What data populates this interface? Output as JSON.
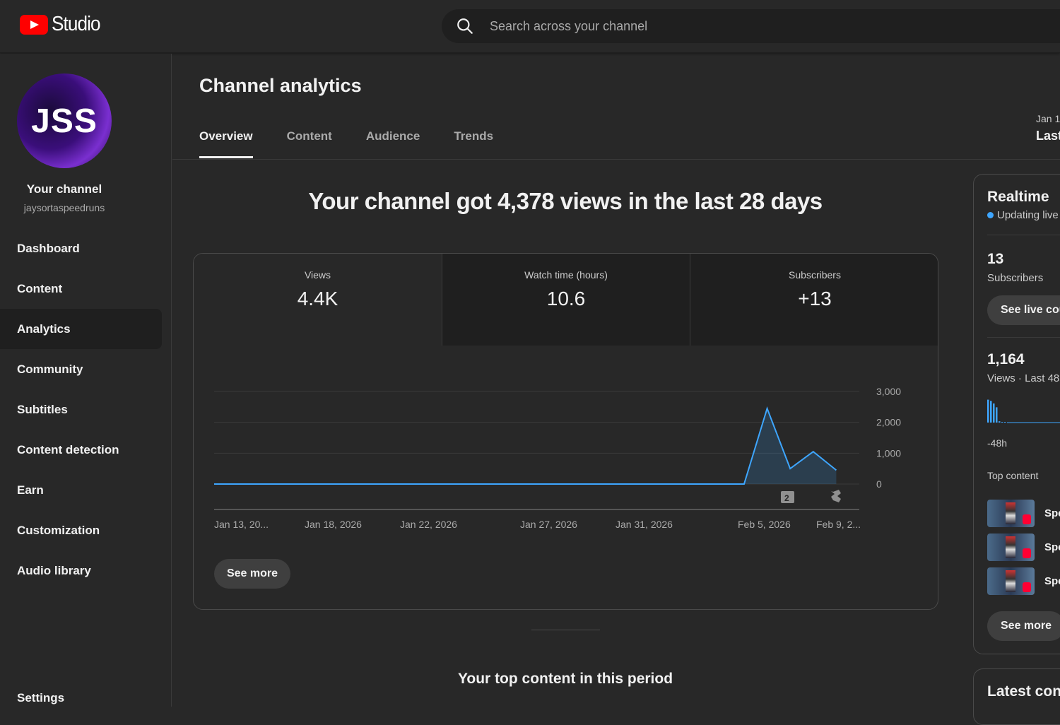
{
  "header": {
    "logo_text": "Studio",
    "search_placeholder": "Search across your channel"
  },
  "sidebar": {
    "avatar_text": "JSS",
    "channel_title": "Your channel",
    "channel_handle": "jaysortaspeedruns",
    "items": [
      {
        "label": "Dashboard"
      },
      {
        "label": "Content"
      },
      {
        "label": "Analytics",
        "active": true
      },
      {
        "label": "Community"
      },
      {
        "label": "Subtitles"
      },
      {
        "label": "Content detection"
      },
      {
        "label": "Earn"
      },
      {
        "label": "Customization"
      },
      {
        "label": "Audio library"
      }
    ],
    "settings_label": "Settings"
  },
  "main": {
    "title": "Channel analytics",
    "tabs": [
      {
        "label": "Overview",
        "active": true
      },
      {
        "label": "Content"
      },
      {
        "label": "Audience"
      },
      {
        "label": "Trends"
      }
    ],
    "date_range_small": "Jan 1",
    "date_range_label": "Last",
    "headline": "Your channel got 4,378 views in the last 28 days",
    "metrics": [
      {
        "label": "Views",
        "value": "4.4K"
      },
      {
        "label": "Watch time (hours)",
        "value": "10.6"
      },
      {
        "label": "Subscribers",
        "value": "+13"
      }
    ],
    "see_more_label": "See more",
    "top_content_heading": "Your top content in this period",
    "chart_marker_count": "2"
  },
  "chart_data": {
    "type": "area",
    "x_tick_labels": [
      "Jan 13, 20...",
      "Jan 18, 2026",
      "Jan 22, 2026",
      "Jan 27, 2026",
      "Jan 31, 2026",
      "Feb 5, 2026",
      "Feb 9, 2..."
    ],
    "y_tick_labels": [
      "3,000",
      "2,000",
      "1,000",
      "0"
    ],
    "ylim": [
      0,
      3000
    ],
    "x_range_days": [
      0,
      28
    ],
    "series": [
      {
        "color": "#3ea6ff",
        "points": [
          [
            0,
            0
          ],
          [
            23,
            0
          ],
          [
            24,
            2450
          ],
          [
            25,
            500
          ],
          [
            26,
            1050
          ],
          [
            27,
            450
          ]
        ]
      }
    ],
    "grid": true
  },
  "realtime": {
    "title": "Realtime",
    "status": "Updating live",
    "subscribers_value": "13",
    "subscribers_label": "Subscribers",
    "see_live_label": "See live cou",
    "views_value": "1,164",
    "views_label": "Views · Last 48",
    "spark_label": "-48h",
    "spark_values": [
      0.9,
      0.85,
      0.75,
      0.6,
      0.05,
      0.02,
      0.02
    ],
    "top_content_label": "Top content",
    "top_items": [
      {
        "label": "Spe"
      },
      {
        "label": "Spe"
      },
      {
        "label": "Spe"
      }
    ],
    "see_more_label": "See more"
  },
  "latest": {
    "title": "Latest cont"
  },
  "colors": {
    "accent": "#3ea6ff",
    "brand_red": "#ff0000",
    "background": "#282828"
  }
}
